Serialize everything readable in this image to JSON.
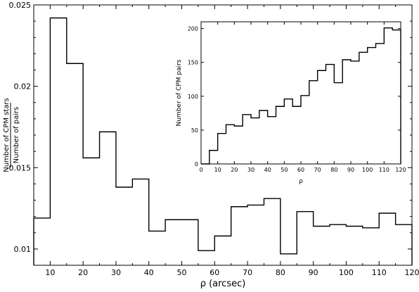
{
  "chart_data": [
    {
      "type": "histogram-step",
      "xlabel": "ρ (arcsec)",
      "ylabel_numerator": "Number of CPM stars",
      "ylabel_denominator": "Number of pairs",
      "xlim": [
        5,
        120
      ],
      "ylim": [
        0.009,
        0.025
      ],
      "x_ticks": [
        10,
        20,
        30,
        40,
        50,
        60,
        70,
        80,
        90,
        100,
        110,
        120
      ],
      "y_ticks": [
        0.01,
        0.015,
        0.02,
        0.025
      ],
      "y_tick_labels": [
        "0.01",
        "0.015",
        "0.02",
        "0.025"
      ],
      "bin_edges": [
        5,
        10,
        15,
        20,
        25,
        30,
        35,
        40,
        45,
        50,
        55,
        60,
        65,
        70,
        75,
        80,
        85,
        90,
        95,
        100,
        105,
        110,
        115,
        120
      ],
      "values": [
        0.0119,
        0.0242,
        0.0214,
        0.0156,
        0.0172,
        0.0138,
        0.0143,
        0.0111,
        0.0118,
        0.0118,
        0.0099,
        0.0108,
        0.0126,
        0.0127,
        0.0131,
        0.0097,
        0.0123,
        0.0114,
        0.0115,
        0.0114,
        0.0113,
        0.0122,
        0.0115
      ]
    },
    {
      "type": "histogram-step",
      "inset": true,
      "xlabel": "ρ",
      "ylabel": "Number of CPM pairs",
      "xlim": [
        0,
        120
      ],
      "ylim": [
        0,
        210
      ],
      "x_ticks": [
        0,
        10,
        20,
        30,
        40,
        50,
        60,
        70,
        80,
        90,
        100,
        110,
        120
      ],
      "y_ticks": [
        0,
        50,
        100,
        150,
        200
      ],
      "bin_edges": [
        0,
        5,
        10,
        15,
        20,
        25,
        30,
        35,
        40,
        45,
        50,
        55,
        60,
        65,
        70,
        75,
        80,
        85,
        90,
        95,
        100,
        105,
        110,
        115,
        120
      ],
      "values": [
        0,
        20,
        45,
        58,
        56,
        73,
        68,
        79,
        70,
        85,
        96,
        85,
        101,
        123,
        138,
        147,
        120,
        154,
        152,
        165,
        172,
        178,
        201,
        198
      ]
    }
  ]
}
